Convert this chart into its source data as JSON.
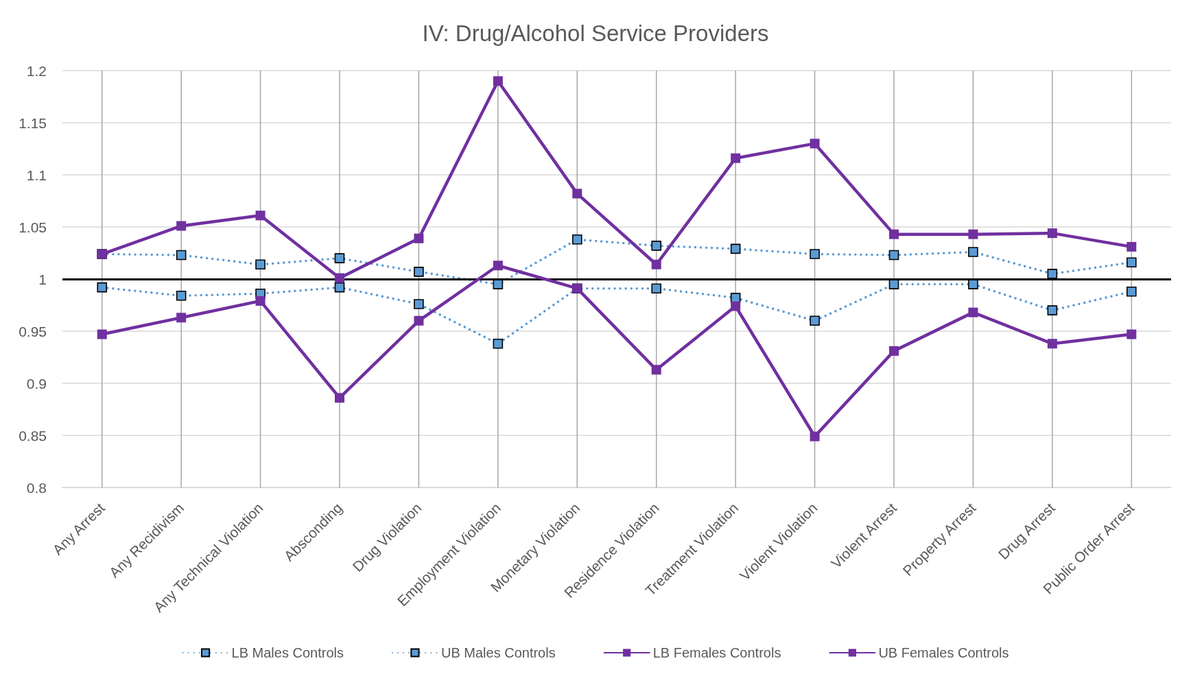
{
  "chart_data": {
    "type": "line",
    "title": "IV: Drug/Alcohol Service Providers",
    "categories": [
      "Any Arrest",
      "Any Recidivism",
      "Any Technical Violation",
      "Absconding",
      "Drug Violation",
      "Employment Violation",
      "Monetary Violation",
      "Residence Violation",
      "Treatment Violation",
      "Violent Violation",
      "Violent Arrest",
      "Property Arrest",
      "Drug Arrest",
      "Public Order Arrest"
    ],
    "series": [
      {
        "name": "LB Males Controls",
        "color": "#5b9bd5",
        "line_style": "dotted",
        "values": [
          0.992,
          0.984,
          0.986,
          0.992,
          0.976,
          0.938,
          0.991,
          0.991,
          0.982,
          0.96,
          0.995,
          0.995,
          0.97,
          0.988
        ]
      },
      {
        "name": "UB Males Controls",
        "color": "#5b9bd5",
        "line_style": "dotted",
        "values": [
          1.024,
          1.023,
          1.014,
          1.02,
          1.007,
          0.995,
          1.038,
          1.032,
          1.029,
          1.024,
          1.023,
          1.026,
          1.005,
          1.016
        ]
      },
      {
        "name": "LB Females Controls",
        "color": "#7030a0",
        "line_style": "solid",
        "values": [
          0.947,
          0.963,
          0.979,
          0.886,
          0.96,
          1.013,
          0.991,
          0.913,
          0.974,
          0.849,
          0.931,
          0.968,
          0.938,
          0.947
        ]
      },
      {
        "name": "UB Females Controls",
        "color": "#7030a0",
        "line_style": "solid",
        "values": [
          1.024,
          1.051,
          1.061,
          1.001,
          1.039,
          1.19,
          1.082,
          1.014,
          1.116,
          1.13,
          1.043,
          1.043,
          1.044,
          1.031
        ]
      }
    ],
    "ylim": [
      0.8,
      1.2
    ],
    "yticks": [
      0.8,
      0.85,
      0.9,
      0.95,
      1,
      1.05,
      1.1,
      1.15,
      1.2
    ],
    "ref_lines": [
      {
        "axis": "y",
        "value": 1,
        "color": "#000000"
      }
    ],
    "grid": true,
    "legend": "bottom",
    "marker": "square"
  }
}
